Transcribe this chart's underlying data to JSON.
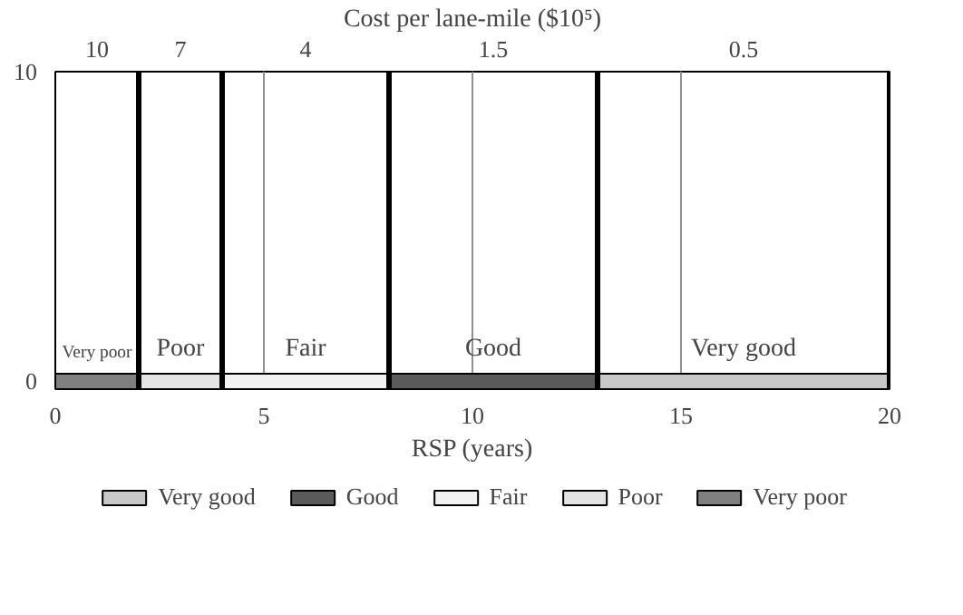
{
  "chart_data": {
    "type": "bar",
    "orientation": "horizontal",
    "stacked": true,
    "categories": [
      "10",
      "0"
    ],
    "series": [
      {
        "name": "Very poor",
        "color": "#808080",
        "values": [
          null,
          2
        ]
      },
      {
        "name": "Poor",
        "color": "#e4e4e4",
        "values": [
          null,
          2
        ]
      },
      {
        "name": "Fair",
        "color": "#f2f2f2",
        "values": [
          null,
          4
        ]
      },
      {
        "name": "Good",
        "color": "#5a5a5a",
        "values": [
          null,
          5
        ]
      },
      {
        "name": "Very good",
        "color": "#c8c8c8",
        "values": [
          null,
          7
        ]
      }
    ],
    "xlabel": "RSP (years)",
    "title": "Cost per lane-mile ($10⁵)",
    "xlim": [
      0,
      20
    ],
    "xticks": [
      0,
      5,
      10,
      15,
      20
    ],
    "legend": "bottom",
    "ref_lines": [
      {
        "axis": "x",
        "value": 5,
        "color": "#909090"
      },
      {
        "axis": "x",
        "value": 10,
        "color": "#909090"
      },
      {
        "axis": "x",
        "value": 15,
        "color": "#909090"
      },
      {
        "axis": "x",
        "value": 2,
        "color": "#000000"
      },
      {
        "axis": "x",
        "value": 4,
        "color": "#000000"
      },
      {
        "axis": "x",
        "value": 8,
        "color": "#000000"
      },
      {
        "axis": "x",
        "value": 13,
        "color": "#000000"
      },
      {
        "axis": "x",
        "value": 20,
        "color": "#000000"
      }
    ],
    "annotations": [
      "10",
      "7",
      "4",
      "1.5",
      "0.5"
    ]
  }
}
